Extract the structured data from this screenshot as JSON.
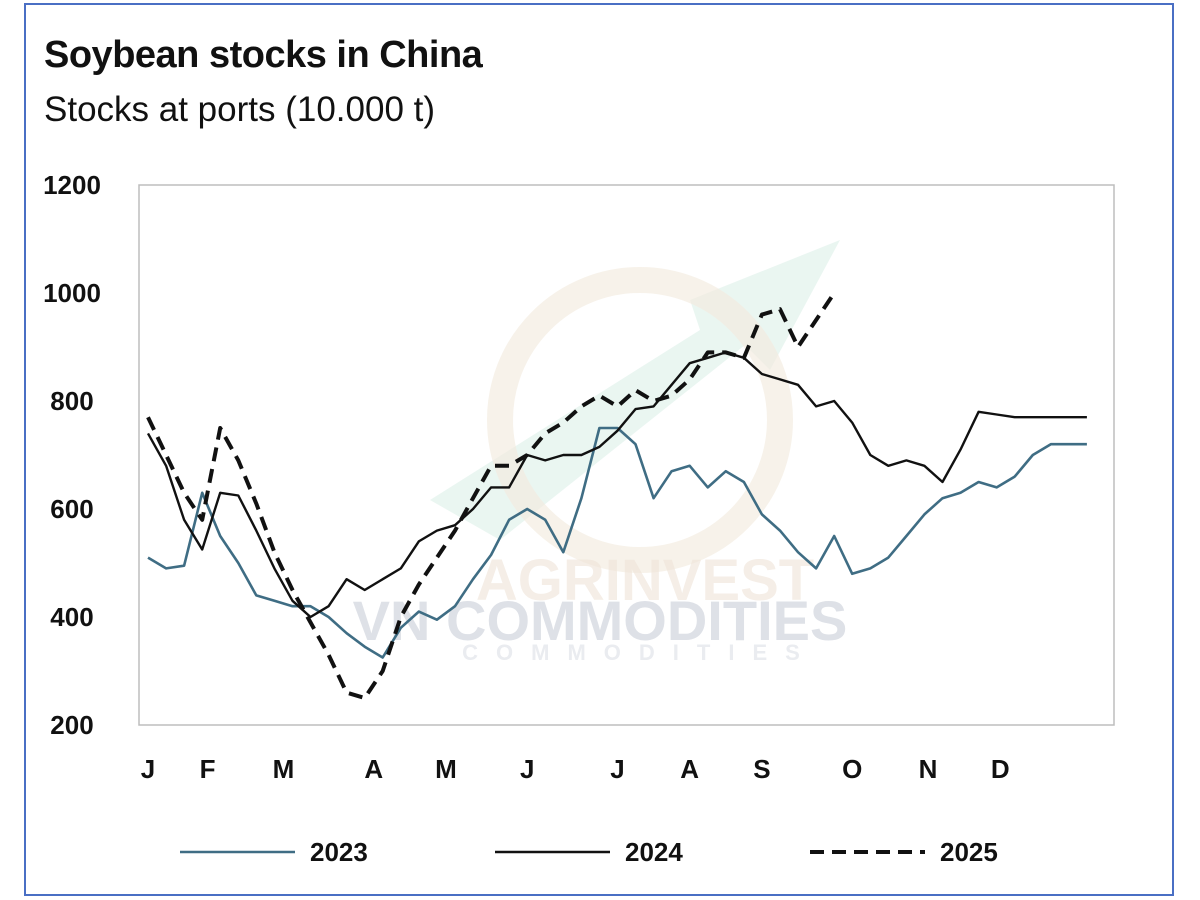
{
  "chart_data": {
    "type": "line",
    "title": "Soybean stocks in China",
    "subtitle": "Stocks at ports (10.000 t)",
    "ylim": [
      200,
      1200
    ],
    "yticks": [
      200,
      400,
      600,
      800,
      1000,
      1200
    ],
    "xlim": [
      0,
      53
    ],
    "x_ticks": [
      {
        "label": "J",
        "week": 0
      },
      {
        "label": "F",
        "week": 3.3
      },
      {
        "label": "M",
        "week": 7.5
      },
      {
        "label": "A",
        "week": 12.5
      },
      {
        "label": "M",
        "week": 16.5
      },
      {
        "label": "J",
        "week": 21
      },
      {
        "label": "J",
        "week": 26
      },
      {
        "label": "A",
        "week": 30
      },
      {
        "label": "S",
        "week": 34
      },
      {
        "label": "O",
        "week": 39
      },
      {
        "label": "N",
        "week": 43.2
      },
      {
        "label": "D",
        "week": 47.2
      }
    ],
    "grid": false,
    "legend_position": "bottom",
    "series": [
      {
        "name": "2023",
        "color": "#3f6d84",
        "dash": "solid",
        "x": [
          0,
          1,
          2,
          3,
          4,
          5,
          6,
          7,
          8,
          9,
          10,
          11,
          12,
          13,
          14,
          15,
          16,
          17,
          18,
          19,
          20,
          21,
          22,
          23,
          24,
          25,
          26,
          27,
          28,
          29,
          30,
          31,
          32,
          33,
          34,
          35,
          36,
          37,
          38,
          39,
          40,
          41,
          42,
          43,
          44,
          45,
          46,
          47,
          48,
          49,
          50,
          51,
          52
        ],
        "values": [
          510,
          490,
          495,
          630,
          550,
          500,
          440,
          430,
          420,
          420,
          400,
          370,
          345,
          325,
          380,
          410,
          395,
          420,
          470,
          515,
          580,
          600,
          580,
          520,
          620,
          750,
          750,
          720,
          620,
          670,
          680,
          640,
          670,
          650,
          590,
          560,
          520,
          490,
          550,
          480,
          490,
          510,
          550,
          590,
          620,
          630,
          650,
          640,
          660,
          700,
          720,
          720,
          720
        ]
      },
      {
        "name": "2024",
        "color": "#111111",
        "dash": "solid",
        "x": [
          0,
          1,
          2,
          3,
          4,
          5,
          6,
          7,
          8,
          9,
          10,
          11,
          12,
          13,
          14,
          15,
          16,
          17,
          18,
          19,
          20,
          21,
          22,
          23,
          24,
          25,
          26,
          27,
          28,
          29,
          30,
          31,
          32,
          33,
          34,
          35,
          36,
          37,
          38,
          39,
          40,
          41,
          42,
          43,
          44,
          45,
          46,
          47,
          48,
          49,
          50,
          51,
          52
        ],
        "values": [
          740,
          680,
          580,
          525,
          630,
          625,
          560,
          490,
          430,
          400,
          420,
          470,
          450,
          470,
          490,
          540,
          560,
          570,
          600,
          640,
          640,
          700,
          690,
          700,
          700,
          715,
          745,
          785,
          790,
          830,
          870,
          880,
          890,
          880,
          850,
          840,
          830,
          790,
          800,
          760,
          700,
          680,
          690,
          680,
          650,
          710,
          780,
          775,
          770,
          770,
          770,
          770,
          770
        ]
      },
      {
        "name": "2025",
        "color": "#111111",
        "dash": "dashed",
        "x": [
          0,
          1,
          2,
          3,
          4,
          5,
          6,
          7,
          8,
          9,
          10,
          11,
          12,
          13,
          14,
          15,
          16,
          17,
          18,
          19,
          20,
          21,
          22,
          23,
          24,
          25,
          26,
          27,
          28,
          29,
          30,
          31,
          32,
          33,
          34,
          35,
          36,
          37,
          38
        ],
        "values": [
          770,
          700,
          630,
          580,
          750,
          690,
          610,
          520,
          450,
          390,
          330,
          260,
          250,
          300,
          400,
          460,
          510,
          560,
          620,
          680,
          680,
          700,
          740,
          760,
          790,
          810,
          790,
          820,
          800,
          810,
          840,
          890,
          890,
          880,
          960,
          970,
          900,
          950,
          1000
        ]
      }
    ]
  },
  "watermark": {
    "brand_line1": "AGRINVEST",
    "brand_line2": "VN COMMODITIES",
    "brand_line3": "COMMODITIES"
  }
}
